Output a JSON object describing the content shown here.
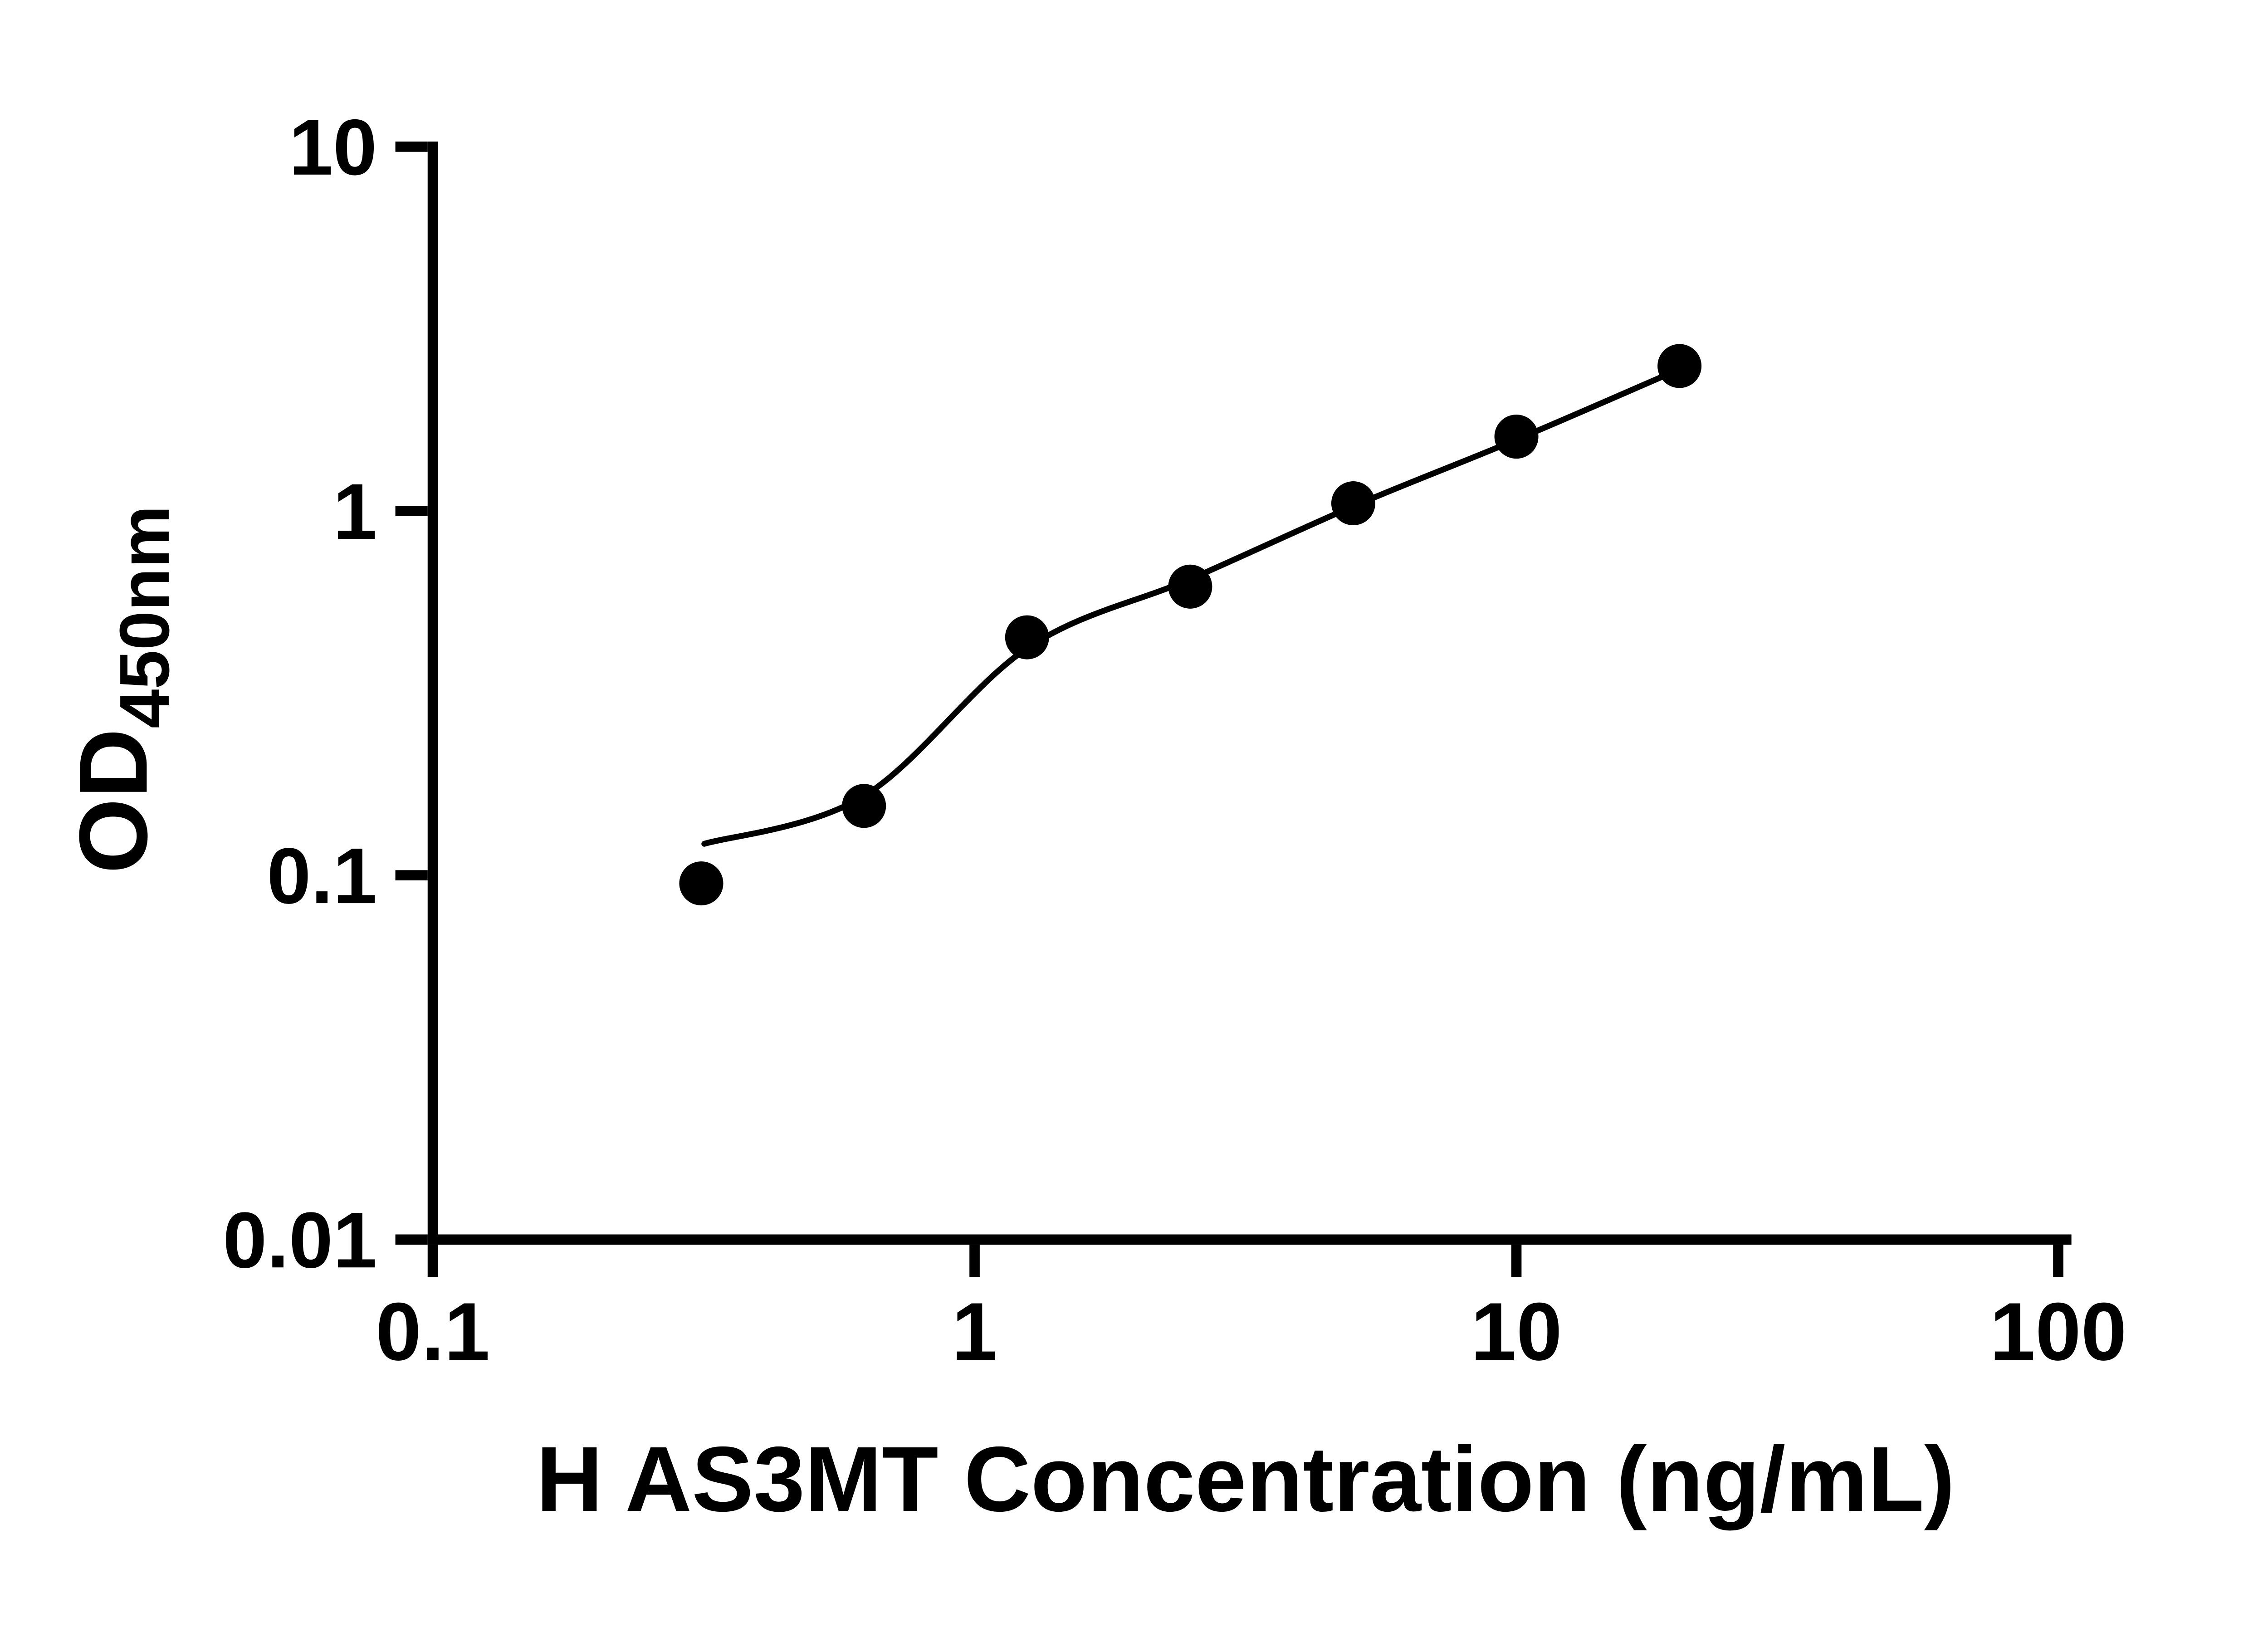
{
  "figure": {
    "background": "#ffffff"
  },
  "chart_data": {
    "type": "scatter",
    "title": "",
    "xlabel": "H AS3MT Concentration (ng/mL)",
    "ylabel": "OD450nm",
    "ylabel_parts": {
      "main": "OD",
      "subscript": "450nm"
    },
    "x_scale": "log10",
    "y_scale": "log10",
    "xlim": [
      0.1,
      100
    ],
    "ylim": [
      0.01,
      10
    ],
    "grid": false,
    "legend": "none",
    "marker_color": "#000000",
    "line_color": "#000000",
    "x_ticks": [
      {
        "value": 0.1,
        "label": "0.1"
      },
      {
        "value": 1,
        "label": "1"
      },
      {
        "value": 10,
        "label": "10"
      },
      {
        "value": 100,
        "label": "100"
      }
    ],
    "y_ticks": [
      {
        "value": 10,
        "label": "10"
      },
      {
        "value": 1,
        "label": "1"
      },
      {
        "value": 0.1,
        "label": "0.1"
      },
      {
        "value": 0.01,
        "label": "0.01"
      }
    ],
    "series": [
      {
        "marker": "circle",
        "color": "#000000",
        "points": [
          {
            "x": 0.313,
            "y": 0.095
          },
          {
            "x": 0.625,
            "y": 0.155
          },
          {
            "x": 1.25,
            "y": 0.45
          },
          {
            "x": 2.5,
            "y": 0.62
          },
          {
            "x": 5,
            "y": 1.05
          },
          {
            "x": 10,
            "y": 1.6
          },
          {
            "x": 20,
            "y": 2.5
          }
        ]
      }
    ],
    "fit_curve": {
      "color": "#000000",
      "points": [
        {
          "x": 0.317,
          "y": 0.122
        },
        {
          "x": 0.625,
          "y": 0.165
        },
        {
          "x": 1.25,
          "y": 0.42
        },
        {
          "x": 2.5,
          "y": 0.65
        },
        {
          "x": 5,
          "y": 1.03
        },
        {
          "x": 10,
          "y": 1.57
        },
        {
          "x": 20,
          "y": 2.45
        }
      ]
    }
  }
}
